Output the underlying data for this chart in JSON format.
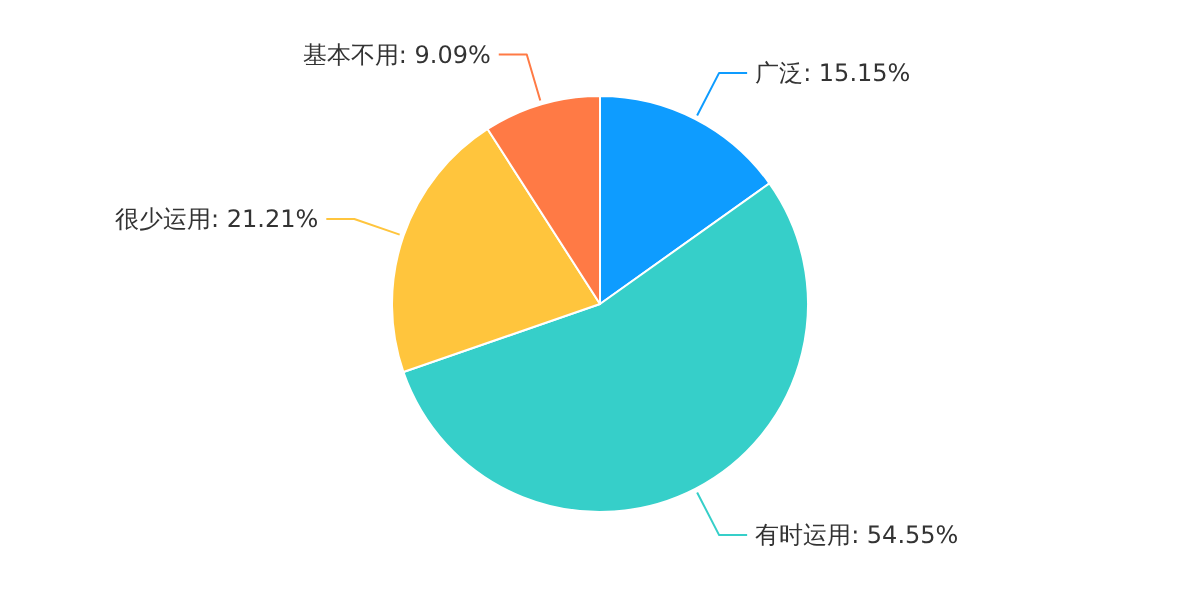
{
  "chart_data": {
    "type": "pie",
    "categories": [
      "广泛",
      "有时运用",
      "很少运用",
      "基本不用"
    ],
    "values": [
      15.15,
      54.55,
      21.21,
      9.09
    ],
    "value_labels": [
      "15.15%",
      "54.55%",
      "21.21%",
      "9.09%"
    ],
    "colors": [
      "#0e9cff",
      "#36cfc9",
      "#ffc53d",
      "#ff7a45"
    ]
  }
}
